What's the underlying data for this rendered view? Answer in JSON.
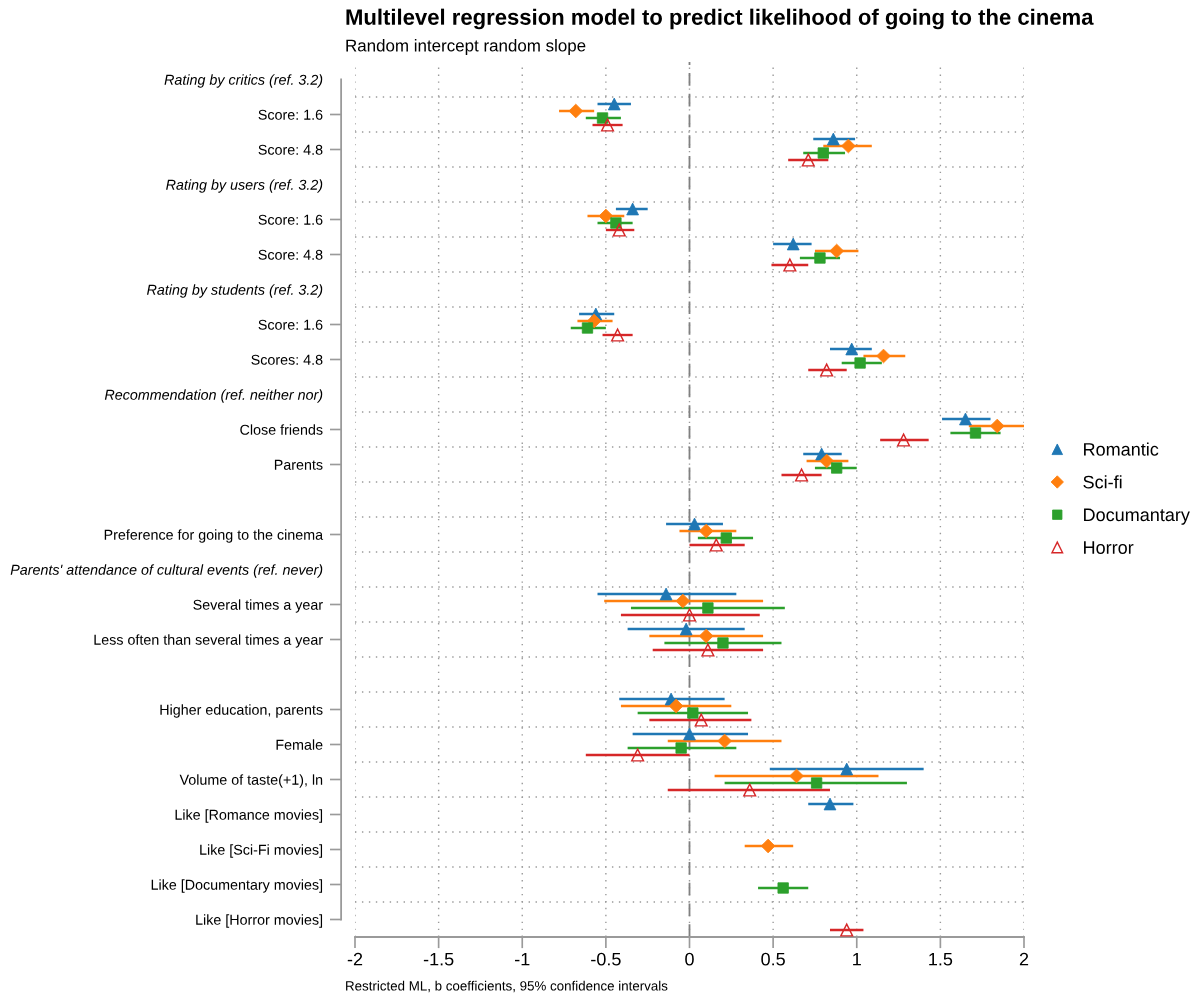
{
  "chart_data": {
    "type": "scatter",
    "orientation": "horizontal",
    "title": "Multilevel regression model to predict likelihood of going to the cinema",
    "subtitle": "Random intercept random slope",
    "annotations": [
      "Restricted ML, b coefficients, 95% confidence intervals"
    ],
    "categories": [
      "Rating by critics (ref. 3.2)",
      "Score: 1.6",
      "Score: 4.8",
      "Rating by users (ref. 3.2)",
      "Score: 1.6",
      "Score: 4.8",
      "Rating by students (ref. 3.2)",
      "Score: 1.6",
      "Scores: 4.8",
      "Recommendation (ref. neither nor)",
      "Close friends",
      "Parents",
      null,
      "Preference for going to the cinema",
      "Parents' attendance of cultural events (ref. never)",
      "Several times a year",
      "Less often than several times a year",
      null,
      "Higher education, parents",
      "Female",
      "Volume of taste(+1), ln",
      "Like [Romance movies]",
      "Like [Sci-Fi movies]",
      "Like [Documentary movies]",
      "Like [Horror movies]"
    ],
    "series": [
      {
        "name": "Romantic",
        "color": "#1f77b4",
        "marker": "triangle",
        "values": [
          null,
          -0.45,
          0.86,
          null,
          -0.34,
          0.62,
          null,
          -0.56,
          0.97,
          null,
          1.65,
          0.79,
          null,
          0.03,
          null,
          -0.14,
          -0.02,
          null,
          -0.11,
          0.0,
          0.94,
          0.84,
          null,
          null,
          null
        ],
        "errors": [
          null,
          [
            -0.55,
            -0.35
          ],
          [
            0.74,
            0.99
          ],
          null,
          [
            -0.44,
            -0.25
          ],
          [
            0.5,
            0.73
          ],
          null,
          [
            -0.66,
            -0.45
          ],
          [
            0.84,
            1.09
          ],
          null,
          [
            1.51,
            1.8
          ],
          [
            0.68,
            0.91
          ],
          null,
          [
            -0.14,
            0.2
          ],
          null,
          [
            -0.55,
            0.28
          ],
          [
            -0.37,
            0.33
          ],
          null,
          [
            -0.42,
            0.21
          ],
          [
            -0.34,
            0.35
          ],
          [
            0.48,
            1.4
          ],
          [
            0.71,
            0.98
          ],
          null,
          null,
          null
        ]
      },
      {
        "name": "Sci-fi",
        "color": "#ff7f0e",
        "marker": "diamond",
        "values": [
          null,
          -0.68,
          0.95,
          null,
          -0.5,
          0.88,
          null,
          -0.57,
          1.16,
          null,
          1.84,
          0.82,
          null,
          0.1,
          null,
          -0.04,
          0.1,
          null,
          -0.08,
          0.21,
          0.64,
          null,
          0.47,
          null,
          null
        ],
        "errors": [
          null,
          [
            -0.78,
            -0.57
          ],
          [
            0.8,
            1.09
          ],
          null,
          [
            -0.61,
            -0.39
          ],
          [
            0.75,
            1.01
          ],
          null,
          [
            -0.67,
            -0.46
          ],
          [
            1.04,
            1.29
          ],
          null,
          [
            1.67,
            2.0
          ],
          [
            0.7,
            0.95
          ],
          null,
          [
            -0.06,
            0.28
          ],
          null,
          [
            -0.51,
            0.44
          ],
          [
            -0.24,
            0.44
          ],
          null,
          [
            -0.41,
            0.25
          ],
          [
            -0.13,
            0.55
          ],
          [
            0.15,
            1.13
          ],
          null,
          [
            0.33,
            0.62
          ],
          null,
          null
        ]
      },
      {
        "name": "Documantary",
        "color": "#2ca02c",
        "marker": "square",
        "values": [
          null,
          -0.52,
          0.8,
          null,
          -0.44,
          0.78,
          null,
          -0.61,
          1.02,
          null,
          1.71,
          0.88,
          null,
          0.22,
          null,
          0.11,
          0.2,
          null,
          0.02,
          -0.05,
          0.76,
          null,
          null,
          0.56,
          null
        ],
        "errors": [
          null,
          [
            -0.62,
            -0.41
          ],
          [
            0.68,
            0.93
          ],
          null,
          [
            -0.55,
            -0.34
          ],
          [
            0.66,
            0.9
          ],
          null,
          [
            -0.71,
            -0.5
          ],
          [
            0.91,
            1.15
          ],
          null,
          [
            1.56,
            1.86
          ],
          [
            0.75,
            1.0
          ],
          null,
          [
            0.05,
            0.38
          ],
          null,
          [
            -0.35,
            0.57
          ],
          [
            -0.15,
            0.55
          ],
          null,
          [
            -0.31,
            0.35
          ],
          [
            -0.37,
            0.28
          ],
          [
            0.21,
            1.3
          ],
          null,
          null,
          [
            0.41,
            0.71
          ],
          null
        ]
      },
      {
        "name": "Horror",
        "color": "#d62728",
        "marker": "triangle",
        "values": [
          null,
          -0.49,
          0.71,
          null,
          -0.42,
          0.6,
          null,
          -0.43,
          0.82,
          null,
          1.28,
          0.67,
          null,
          0.16,
          null,
          0.0,
          0.11,
          null,
          0.07,
          -0.31,
          0.36,
          null,
          null,
          null,
          0.94
        ],
        "errors": [
          null,
          [
            -0.58,
            -0.4
          ],
          [
            0.59,
            0.83
          ],
          null,
          [
            -0.5,
            -0.33
          ],
          [
            0.49,
            0.71
          ],
          null,
          [
            -0.52,
            -0.34
          ],
          [
            0.71,
            0.94
          ],
          null,
          [
            1.14,
            1.43
          ],
          [
            0.55,
            0.79
          ],
          null,
          [
            0.0,
            0.33
          ],
          null,
          [
            -0.41,
            0.42
          ],
          [
            -0.22,
            0.44
          ],
          null,
          [
            -0.24,
            0.37
          ],
          [
            -0.62,
            0.0
          ],
          [
            -0.13,
            0.84
          ],
          null,
          null,
          null,
          [
            0.84,
            1.04
          ]
        ]
      }
    ],
    "xlim": [
      -2,
      2
    ],
    "xticks": [
      -2,
      -1.5,
      -1,
      -0.5,
      0,
      0.5,
      1,
      1.5,
      2
    ],
    "ref_lines": [
      {
        "axis": "x",
        "value": 0,
        "color": "#808080",
        "line_style": "dashed"
      }
    ],
    "grid": true,
    "legend": "right"
  }
}
